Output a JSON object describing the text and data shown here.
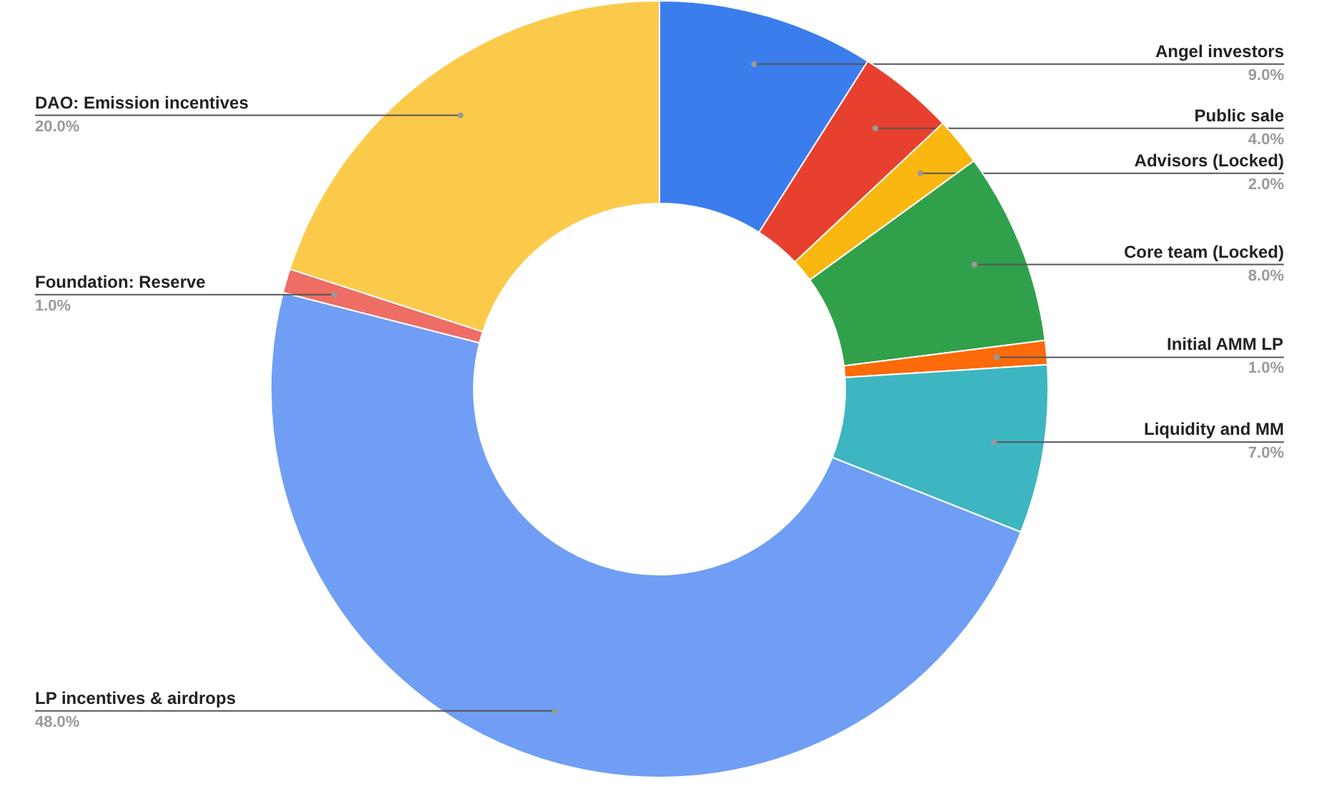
{
  "chart_data": {
    "type": "donut",
    "categories": [
      "Angel investors",
      "Public sale",
      "Advisors (Locked)",
      "Core team (Locked)",
      "Initial AMM LP",
      "Liquidity and MM",
      "LP incentives & airdrops",
      "Foundation: Reserve",
      "DAO: Emission incentives"
    ],
    "values": [
      9,
      4,
      2,
      8,
      1,
      7,
      48,
      1,
      20
    ],
    "colors": [
      "#3b7ded",
      "#e8402f",
      "#f9b70f",
      "#31a04b",
      "#fc6a0a",
      "#3db6c1",
      "#6f9ef4",
      "#ee6d65",
      "#fcca4b"
    ],
    "value_labels": [
      "9.0%",
      "4.0%",
      "2.0%",
      "8.0%",
      "1.0%",
      "7.0%",
      "48.0%",
      "1.0%",
      "20.0%"
    ]
  }
}
